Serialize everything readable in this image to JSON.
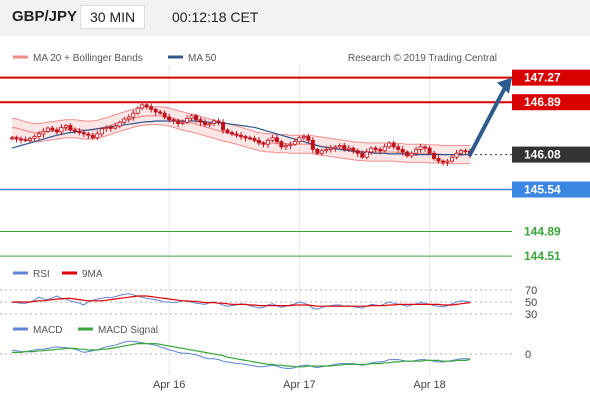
{
  "header": {
    "symbol": "GBP/JPY",
    "timeframe": "30 MIN",
    "time": "00:12:18 CET"
  },
  "copyright": "Research © 2019 Trading Central",
  "colors": {
    "bollinger": "#f08c8c",
    "ma50": "#2f5a8e",
    "resistance": "#d80000",
    "support_blue": "#3a86e0",
    "support_green": "#3aa53a",
    "last_price": "#333333",
    "candle": "#c0101a",
    "rsi": "#5b83d6",
    "rsi_9ma": "#e00000",
    "macd": "#5b83d6",
    "macd_signal": "#3aa53a"
  },
  "chart_data": [
    {
      "type": "candlestick",
      "legend": [
        "MA 20 + Bollinger Bands",
        "MA 50"
      ],
      "ylim": [
        144.45,
        147.45
      ],
      "x_ticks": [
        {
          "label": "Apr 16",
          "index": 35
        },
        {
          "label": "Apr 17",
          "index": 64
        },
        {
          "label": "Apr 18",
          "index": 93
        }
      ],
      "levels": [
        {
          "value": 147.27,
          "label": "147.27",
          "kind": "resistance"
        },
        {
          "value": 146.89,
          "label": "146.89",
          "kind": "resistance"
        },
        {
          "value": 146.08,
          "label": "146.08",
          "kind": "last"
        },
        {
          "value": 145.54,
          "label": "145.54",
          "kind": "support_blue"
        },
        {
          "value": 144.89,
          "label": "144.89",
          "kind": "support_green"
        },
        {
          "value": 144.51,
          "label": "144.51",
          "kind": "support_green"
        }
      ],
      "close": [
        146.34,
        146.32,
        146.31,
        146.3,
        146.33,
        146.36,
        146.4,
        146.44,
        146.49,
        146.46,
        146.43,
        146.5,
        146.53,
        146.46,
        146.44,
        146.42,
        146.4,
        146.38,
        146.34,
        146.4,
        146.48,
        146.5,
        146.49,
        146.52,
        146.58,
        146.63,
        146.66,
        146.72,
        146.8,
        146.85,
        146.82,
        146.78,
        146.74,
        146.72,
        146.66,
        146.62,
        146.6,
        146.56,
        146.58,
        146.64,
        146.68,
        146.62,
        146.58,
        146.54,
        146.56,
        146.6,
        146.58,
        146.46,
        146.42,
        146.4,
        146.38,
        146.36,
        146.34,
        146.33,
        146.3,
        146.26,
        146.24,
        146.3,
        146.34,
        146.28,
        146.2,
        146.22,
        146.24,
        146.28,
        146.34,
        146.36,
        146.3,
        146.16,
        146.1,
        146.14,
        146.16,
        146.18,
        146.2,
        146.22,
        146.16,
        146.18,
        146.14,
        146.1,
        146.04,
        146.12,
        146.18,
        146.16,
        146.14,
        146.2,
        146.26,
        146.2,
        146.16,
        146.12,
        146.06,
        146.1,
        146.16,
        146.2,
        146.18,
        146.1,
        146.02,
        145.98,
        145.96,
        145.98,
        146.04,
        146.1,
        146.14,
        146.13,
        146.08
      ],
      "bollinger_mid": [
        146.5,
        146.49,
        146.47,
        146.45,
        146.43,
        146.42,
        146.42,
        146.43,
        146.44,
        146.45,
        146.46,
        146.47,
        146.48,
        146.48,
        146.48,
        146.47,
        146.46,
        146.46,
        146.46,
        146.47,
        146.49,
        146.51,
        146.53,
        146.56,
        146.58,
        146.6,
        146.62,
        146.64,
        146.66,
        146.67,
        146.68,
        146.68,
        146.68,
        146.68,
        146.67,
        146.66,
        146.64,
        146.62,
        146.6,
        146.58,
        146.57,
        146.55,
        146.53,
        146.51,
        146.49,
        146.47,
        146.45,
        146.43,
        146.42,
        146.4,
        146.38,
        146.36,
        146.34,
        146.32,
        146.3,
        146.28,
        146.27,
        146.26,
        146.26,
        146.25,
        146.25,
        146.25,
        146.24,
        146.24,
        146.24,
        146.24,
        146.24,
        146.23,
        146.22,
        146.21,
        146.2,
        146.19,
        146.18,
        146.17,
        146.16,
        146.15,
        146.14,
        146.13,
        146.13,
        146.12,
        146.12,
        146.12,
        146.12,
        146.12,
        146.12,
        146.12,
        146.11,
        146.11,
        146.1,
        146.1,
        146.1,
        146.1,
        146.1,
        146.09,
        146.09,
        146.09,
        146.08,
        146.08,
        146.08,
        146.08,
        146.08,
        146.08,
        146.08
      ],
      "bollinger_width": 0.14,
      "ma50": [
        146.18,
        146.2,
        146.22,
        146.24,
        146.26,
        146.28,
        146.3,
        146.32,
        146.34,
        146.36,
        146.38,
        146.39,
        146.41,
        146.42,
        146.43,
        146.44,
        146.45,
        146.46,
        146.47,
        146.48,
        146.49,
        146.5,
        146.51,
        146.52,
        146.53,
        146.54,
        146.55,
        146.56,
        146.57,
        146.58,
        146.59,
        146.59,
        146.6,
        146.6,
        146.6,
        146.6,
        146.6,
        146.6,
        146.6,
        146.6,
        146.6,
        146.6,
        146.59,
        146.59,
        146.58,
        146.58,
        146.57,
        146.57,
        146.56,
        146.55,
        146.54,
        146.53,
        146.52,
        146.51,
        146.5,
        146.48,
        146.46,
        146.44,
        146.42,
        146.4,
        146.38,
        146.36,
        146.34,
        146.32,
        146.3,
        146.28,
        146.26,
        146.24,
        146.22,
        146.2,
        146.19,
        146.18,
        146.17,
        146.16,
        146.15,
        146.14,
        146.13,
        146.12,
        146.12,
        146.11,
        146.11,
        146.1,
        146.1,
        146.1,
        146.09,
        146.09,
        146.09,
        146.09,
        146.09,
        146.08,
        146.08,
        146.08,
        146.08,
        146.08,
        146.08,
        146.08,
        146.08,
        146.08,
        146.08,
        146.08,
        146.08,
        146.08,
        146.08
      ],
      "forecast": [
        146.08,
        147.27
      ]
    },
    {
      "type": "line",
      "legend": [
        "RSI",
        "9MA"
      ],
      "ylim": [
        20,
        80
      ],
      "y_ticks": [
        70,
        50,
        30
      ],
      "rsi": [
        50,
        49,
        48,
        48,
        50,
        53,
        58,
        55,
        54,
        57,
        60,
        56,
        55,
        52,
        50,
        48,
        45,
        50,
        53,
        55,
        56,
        58,
        57,
        59,
        61,
        63,
        64,
        62,
        60,
        58,
        56,
        55,
        54,
        52,
        50,
        50,
        49,
        50,
        52,
        51,
        50,
        48,
        47,
        46,
        49,
        50,
        48,
        45,
        43,
        44,
        45,
        47,
        46,
        44,
        42,
        40,
        41,
        45,
        47,
        44,
        41,
        43,
        45,
        47,
        50,
        48,
        45,
        40,
        38,
        41,
        43,
        44,
        45,
        45,
        43,
        44,
        42,
        41,
        40,
        43,
        46,
        45,
        44,
        47,
        50,
        48,
        46,
        45,
        43,
        45,
        47,
        49,
        48,
        46,
        44,
        43,
        42,
        44,
        47,
        50,
        52,
        51,
        50
      ],
      "rsi_9ma": [
        50,
        50,
        50,
        50,
        50,
        51,
        52,
        52,
        53,
        54,
        55,
        55,
        56,
        56,
        55,
        54,
        53,
        52,
        52,
        52,
        52,
        53,
        54,
        55,
        56,
        57,
        58,
        59,
        60,
        60,
        60,
        59,
        58,
        57,
        56,
        55,
        54,
        53,
        52,
        52,
        51,
        51,
        50,
        49,
        49,
        49,
        48,
        48,
        47,
        46,
        46,
        46,
        46,
        45,
        45,
        44,
        44,
        44,
        44,
        44,
        44,
        44,
        44,
        45,
        45,
        45,
        45,
        44,
        43,
        43,
        43,
        43,
        43,
        43,
        43,
        43,
        43,
        43,
        43,
        43,
        44,
        44,
        44,
        44,
        45,
        45,
        46,
        46,
        46,
        46,
        46,
        46,
        46,
        46,
        46,
        46,
        45,
        45,
        45,
        46,
        47,
        48,
        49
      ]
    },
    {
      "type": "line",
      "legend": [
        "MACD",
        "MACD Signal"
      ],
      "ylim": [
        -0.25,
        0.2
      ],
      "y_ticks": [
        0
      ],
      "macd": [
        0.05,
        0.04,
        0.03,
        0.03,
        0.04,
        0.05,
        0.06,
        0.06,
        0.07,
        0.08,
        0.09,
        0.08,
        0.08,
        0.07,
        0.06,
        0.04,
        0.02,
        0.03,
        0.04,
        0.05,
        0.07,
        0.09,
        0.1,
        0.11,
        0.13,
        0.15,
        0.16,
        0.16,
        0.15,
        0.14,
        0.13,
        0.12,
        0.11,
        0.09,
        0.07,
        0.05,
        0.04,
        0.02,
        0.01,
        0.01,
        0.0,
        -0.01,
        -0.03,
        -0.05,
        -0.06,
        -0.06,
        -0.07,
        -0.09,
        -0.1,
        -0.11,
        -0.12,
        -0.12,
        -0.13,
        -0.14,
        -0.15,
        -0.16,
        -0.16,
        -0.15,
        -0.14,
        -0.15,
        -0.17,
        -0.18,
        -0.18,
        -0.17,
        -0.15,
        -0.14,
        -0.14,
        -0.16,
        -0.17,
        -0.16,
        -0.15,
        -0.14,
        -0.13,
        -0.12,
        -0.12,
        -0.12,
        -0.12,
        -0.13,
        -0.14,
        -0.13,
        -0.11,
        -0.1,
        -0.1,
        -0.09,
        -0.07,
        -0.07,
        -0.07,
        -0.08,
        -0.09,
        -0.09,
        -0.08,
        -0.07,
        -0.07,
        -0.08,
        -0.09,
        -0.1,
        -0.1,
        -0.09,
        -0.08,
        -0.07,
        -0.06,
        -0.06,
        -0.06
      ],
      "macd_signal": [
        0.02,
        0.02,
        0.02,
        0.03,
        0.03,
        0.03,
        0.04,
        0.04,
        0.05,
        0.05,
        0.06,
        0.06,
        0.07,
        0.07,
        0.07,
        0.06,
        0.06,
        0.05,
        0.05,
        0.05,
        0.06,
        0.06,
        0.07,
        0.08,
        0.09,
        0.1,
        0.11,
        0.12,
        0.13,
        0.13,
        0.13,
        0.13,
        0.13,
        0.12,
        0.11,
        0.1,
        0.09,
        0.08,
        0.07,
        0.06,
        0.05,
        0.04,
        0.03,
        0.02,
        0.01,
        0.0,
        -0.01,
        -0.02,
        -0.04,
        -0.05,
        -0.06,
        -0.07,
        -0.08,
        -0.09,
        -0.1,
        -0.11,
        -0.12,
        -0.13,
        -0.13,
        -0.14,
        -0.14,
        -0.15,
        -0.15,
        -0.16,
        -0.16,
        -0.16,
        -0.15,
        -0.15,
        -0.15,
        -0.15,
        -0.15,
        -0.15,
        -0.14,
        -0.14,
        -0.13,
        -0.13,
        -0.13,
        -0.13,
        -0.13,
        -0.13,
        -0.12,
        -0.12,
        -0.12,
        -0.11,
        -0.11,
        -0.1,
        -0.1,
        -0.09,
        -0.09,
        -0.09,
        -0.09,
        -0.09,
        -0.08,
        -0.08,
        -0.08,
        -0.08,
        -0.09,
        -0.09,
        -0.09,
        -0.08,
        -0.08,
        -0.08,
        -0.07
      ]
    }
  ]
}
